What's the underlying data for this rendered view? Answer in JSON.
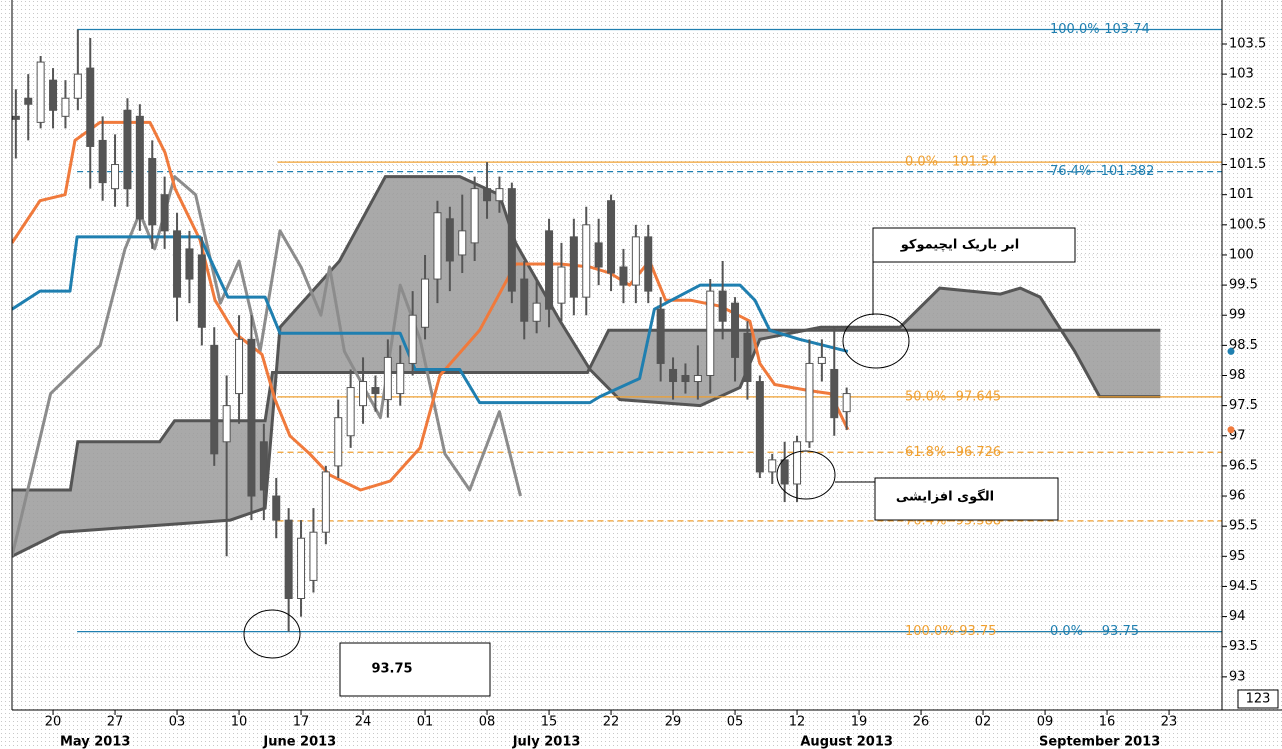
{
  "chart_data": {
    "type": "candlestick",
    "xlim": [
      -3.31,
      94.27
    ],
    "ylim": [
      92.45,
      104.23
    ],
    "grid": true,
    "yticks": [
      93,
      93.5,
      94,
      94.5,
      95,
      95.5,
      96,
      96.5,
      97,
      97.5,
      98,
      98.5,
      99,
      99.5,
      100,
      100.5,
      101,
      101.5,
      102,
      102.5,
      103,
      103.5
    ],
    "xticks": [
      {
        "value": 0,
        "label": "20"
      },
      {
        "value": 5,
        "label": "27"
      },
      {
        "value": 10,
        "label": "03"
      },
      {
        "value": 15,
        "label": "10"
      },
      {
        "value": 20,
        "label": "17"
      },
      {
        "value": 25,
        "label": "24"
      },
      {
        "value": 30,
        "label": "01"
      },
      {
        "value": 35,
        "label": "08"
      },
      {
        "value": 40,
        "label": "15"
      },
      {
        "value": 45,
        "label": "22"
      },
      {
        "value": 50,
        "label": "29"
      },
      {
        "value": 55,
        "label": "05"
      },
      {
        "value": 60,
        "label": "12"
      },
      {
        "value": 65,
        "label": "19"
      },
      {
        "value": 70,
        "label": "26"
      },
      {
        "value": 75,
        "label": "02"
      },
      {
        "value": 80,
        "label": "09"
      },
      {
        "value": 85,
        "label": "16"
      },
      {
        "value": 90,
        "label": "23"
      }
    ],
    "month_labels": [
      {
        "value": 3.4,
        "label": "May 2013"
      },
      {
        "value": 19.9,
        "label": "June 2013"
      },
      {
        "value": 39.8,
        "label": "July 2013"
      },
      {
        "value": 64,
        "label": "August 2013"
      },
      {
        "value": 84.4,
        "label": "September 2013"
      }
    ],
    "candles": {
      "up_color": "#ffffff",
      "down_color": "#555555",
      "x": [
        -3,
        -2,
        -1,
        0,
        1,
        2,
        3,
        4,
        5,
        6,
        7,
        8,
        9,
        10,
        11,
        12,
        13,
        14,
        15,
        16,
        17,
        18,
        19,
        20,
        21,
        22,
        23,
        24,
        25,
        26,
        27,
        28,
        29,
        30,
        31,
        32,
        33,
        34,
        35,
        36,
        37,
        38,
        39,
        40,
        41,
        42,
        43,
        44,
        45,
        46,
        47,
        48,
        49,
        50,
        51,
        52,
        53,
        54,
        55,
        56,
        57,
        58,
        59,
        60,
        61,
        62,
        63,
        64
      ],
      "open": [
        102.3,
        102.6,
        102.2,
        102.9,
        102.3,
        102.6,
        103.1,
        101.9,
        101.1,
        102.4,
        102.3,
        101.6,
        101.0,
        100.4,
        100.1,
        100.0,
        98.5,
        96.9,
        97.7,
        98.6,
        96.9,
        96.0,
        95.6,
        94.3,
        94.6,
        95.4,
        96.5,
        97.0,
        97.5,
        97.8,
        97.6,
        97.7,
        98.2,
        98.8,
        99.6,
        100.6,
        100.0,
        100.2,
        101.1,
        100.9,
        101.1,
        99.6,
        98.9,
        100.4,
        99.2,
        100.3,
        99.3,
        100.2,
        100.9,
        99.8,
        99.5,
        100.3,
        99.1,
        98.1,
        98.0,
        97.9,
        98.0,
        99.4,
        99.2,
        98.7,
        97.9,
        96.4,
        96.6,
        96.2,
        96.9,
        98.2,
        98.1,
        97.4
      ],
      "high": [
        102.75,
        103.0,
        103.3,
        103.1,
        102.9,
        103.74,
        103.6,
        102.3,
        102.0,
        102.6,
        102.5,
        101.9,
        101.3,
        100.7,
        100.4,
        100.3,
        98.8,
        98.0,
        99.0,
        99.0,
        97.2,
        96.3,
        95.8,
        95.6,
        95.8,
        96.5,
        97.6,
        98.1,
        98.3,
        98.0,
        98.6,
        98.5,
        99.4,
        100.0,
        100.9,
        100.8,
        101.0,
        101.3,
        101.54,
        101.3,
        101.2,
        99.9,
        99.6,
        100.6,
        100.2,
        100.6,
        100.8,
        100.6,
        101.0,
        100.1,
        100.5,
        100.5,
        99.3,
        98.3,
        98.2,
        98.5,
        99.6,
        99.9,
        99.3,
        98.9,
        98.0,
        96.7,
        96.9,
        97.0,
        98.6,
        98.6,
        98.8,
        97.8
      ],
      "low": [
        101.6,
        101.9,
        102.1,
        102.1,
        102.1,
        102.4,
        101.1,
        100.9,
        100.8,
        100.8,
        100.4,
        100.1,
        100.1,
        98.9,
        99.2,
        98.5,
        96.5,
        95.0,
        97.2,
        95.6,
        95.6,
        95.3,
        93.75,
        94.0,
        94.4,
        95.2,
        96.3,
        96.8,
        97.2,
        97.4,
        97.3,
        97.5,
        98.0,
        98.6,
        99.2,
        99.4,
        99.7,
        99.9,
        100.6,
        100.7,
        99.2,
        98.6,
        98.7,
        98.8,
        98.9,
        99.0,
        99.0,
        99.5,
        99.4,
        99.2,
        99.2,
        99.2,
        97.9,
        97.6,
        97.7,
        97.6,
        97.7,
        98.6,
        97.9,
        97.6,
        96.3,
        96.2,
        95.9,
        95.9,
        96.8,
        97.9,
        97.0,
        97.1
      ],
      "close": [
        102.25,
        102.5,
        103.2,
        102.4,
        102.6,
        103.0,
        101.8,
        101.2,
        101.5,
        101.1,
        100.6,
        100.5,
        100.4,
        99.3,
        99.6,
        98.8,
        96.7,
        97.5,
        98.6,
        96.0,
        96.1,
        95.6,
        94.3,
        95.3,
        95.4,
        96.4,
        97.3,
        97.8,
        97.9,
        97.7,
        98.3,
        98.2,
        99.0,
        99.6,
        100.7,
        99.9,
        100.4,
        101.1,
        100.9,
        101.1,
        99.4,
        98.9,
        99.2,
        99.1,
        99.8,
        99.3,
        100.5,
        99.8,
        99.7,
        99.5,
        100.3,
        99.4,
        98.2,
        97.9,
        97.9,
        98.0,
        99.4,
        98.9,
        98.3,
        97.9,
        96.4,
        96.6,
        96.2,
        96.9,
        98.2,
        98.3,
        97.3,
        97.7
      ]
    },
    "cloud": {
      "color": "#9a9a9a",
      "line_color": "#555555",
      "span_a": {
        "x": [
          -3.31,
          0.6,
          14.3,
          17.1,
          18.3,
          23.1,
          26.8,
          32.8,
          36,
          37.3,
          40.9,
          43.3,
          45.7,
          52.2,
          55.4,
          57,
          61.9,
          68.3,
          71.5,
          76.4,
          78,
          79.6,
          82.4,
          84.4,
          89.3
        ],
        "y": [
          95.0,
          95.4,
          95.6,
          95.8,
          98.8,
          99.9,
          101.3,
          101.3,
          101.0,
          100.2,
          98.9,
          98.1,
          97.6,
          97.5,
          97.8,
          98.6,
          98.8,
          98.8,
          99.45,
          99.35,
          99.45,
          99.3,
          98.4,
          97.65,
          97.65
        ]
      },
      "span_b": {
        "x": [
          -3.31,
          1.4,
          2.0,
          8.6,
          9.8,
          17.1,
          17.7,
          43.1,
          44.8,
          89.3
        ],
        "y": [
          96.1,
          96.1,
          96.9,
          96.9,
          97.25,
          97.25,
          98.05,
          98.05,
          98.75,
          98.75
        ]
      }
    },
    "lines": [
      {
        "color": "#8c8c8c",
        "end_marker": false,
        "x": [
          -3.31,
          -0.2,
          3.8,
          5.8,
          7,
          8.2,
          9.8,
          11.5,
          13.5,
          15,
          16.7,
          18.3,
          20,
          21.6,
          22.3,
          23.5,
          26.4,
          28,
          29.6,
          31.6,
          33.6,
          36,
          37.7
        ],
        "y": [
          95.0,
          97.7,
          98.5,
          100.1,
          100.7,
          100.1,
          101.3,
          101.0,
          99.2,
          99.9,
          98.4,
          100.4,
          99.8,
          99.0,
          99.8,
          98.4,
          97.3,
          99.5,
          98.6,
          96.7,
          96.1,
          97.4,
          96.0
        ]
      },
      {
        "color": "#f07a3c",
        "end_marker": true,
        "x": [
          -3.31,
          -1.05,
          0.97,
          1.77,
          3.79,
          7.82,
          9.03,
          9.84,
          11.85,
          13.06,
          14.68,
          16.85,
          17.9,
          19.1,
          20.7,
          22.3,
          24.8,
          27.2,
          29.6,
          30.4,
          31.2,
          34.4,
          37.3,
          40.9,
          43.3,
          44.9,
          46.5,
          48.1,
          49.4,
          51.4,
          53.8,
          56.2,
          57.0,
          58.2,
          61.0,
          62.7,
          64.1
        ],
        "y": [
          100.2,
          100.9,
          101.0,
          101.9,
          102.2,
          102.2,
          101.7,
          101.1,
          100.25,
          99.25,
          98.7,
          98.35,
          97.6,
          97.0,
          96.7,
          96.35,
          96.1,
          96.25,
          96.8,
          97.4,
          98.0,
          98.75,
          99.85,
          99.85,
          99.8,
          99.7,
          99.5,
          99.9,
          99.25,
          99.25,
          99.15,
          98.9,
          98.2,
          97.85,
          97.75,
          97.7,
          97.1
        ]
      },
      {
        "color": "#1f7fb0",
        "end_marker": true,
        "x": [
          -3.31,
          -1.05,
          1.37,
          1.94,
          11.85,
          14.1,
          17.1,
          18.3,
          28.0,
          29.2,
          32.8,
          34.4,
          43.3,
          44.1,
          47.3,
          48.5,
          52.2,
          55.4,
          56.6,
          57.8,
          60.2,
          64.1
        ],
        "y": [
          99.1,
          99.4,
          99.4,
          100.3,
          100.3,
          99.3,
          99.3,
          98.7,
          98.7,
          98.1,
          98.1,
          97.55,
          97.55,
          97.65,
          97.95,
          99.1,
          99.5,
          99.5,
          99.25,
          98.75,
          98.6,
          98.4
        ]
      }
    ],
    "levels": [
      {
        "value": 103.74,
        "label": "100.0%-103.74",
        "color": "#1f7fb0",
        "dashed": false,
        "x_start": 1.94
      },
      {
        "value": 101.54,
        "label": "0.0%---101.54",
        "color": "#f0a030",
        "dashed": false,
        "x_start": 18.1
      },
      {
        "value": 101.382,
        "label": "76.4%--101.382",
        "color": "#1f7fb0",
        "dashed": true,
        "x_start": 1.94
      },
      {
        "value": 97.645,
        "label": "50.0%--97.645",
        "color": "#f0a030",
        "dashed": false,
        "x_start": 18.1
      },
      {
        "value": 96.726,
        "label": "61.8%--96.726",
        "color": "#f0a030",
        "dashed": true,
        "x_start": 18.1
      },
      {
        "value": 95.588,
        "label": "76.4%--95.588",
        "color": "#f0a030",
        "dashed": true,
        "x_start": 18.1
      },
      {
        "value": 93.75,
        "label": "100.0%-93.75",
        "color": "#f0a030",
        "dashed": false,
        "x_start": 35.2
      },
      {
        "value": 93.75,
        "label": "0.0%----93.75",
        "color": "#1f7fb0",
        "dashed": false,
        "x_start": 1.94
      }
    ],
    "annotations": [
      "ابر باریک ایچیموکو",
      "الگوی افزایشی",
      "93.75"
    ],
    "corner_label": "123"
  }
}
